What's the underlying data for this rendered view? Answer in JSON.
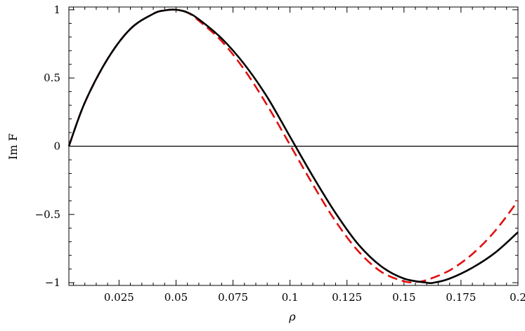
{
  "chart_data": {
    "type": "line",
    "xlabel": "ρ",
    "ylabel": "Im F",
    "xlim": [
      0.003,
      0.2
    ],
    "ylim": [
      -1.02,
      1.02
    ],
    "grid": false,
    "x_ticks": [
      {
        "value": 0.025,
        "label": "0.025"
      },
      {
        "value": 0.05,
        "label": "0.05"
      },
      {
        "value": 0.075,
        "label": "0.075"
      },
      {
        "value": 0.1,
        "label": "0.1"
      },
      {
        "value": 0.125,
        "label": "0.125"
      },
      {
        "value": 0.15,
        "label": "0.15"
      },
      {
        "value": 0.175,
        "label": "0.175"
      },
      {
        "value": 0.2,
        "label": "0.2"
      }
    ],
    "y_ticks": [
      {
        "value": 1,
        "label": "1"
      },
      {
        "value": 0.5,
        "label": "0.5"
      },
      {
        "value": 0,
        "label": "0"
      },
      {
        "value": -0.5,
        "label": "−0.5"
      },
      {
        "value": -1,
        "label": "−1"
      }
    ],
    "reference_lines": [
      {
        "axis": "y",
        "value": 0,
        "color": "#000000"
      }
    ],
    "series": [
      {
        "color": "#000000",
        "style": "solid",
        "x": [
          0.003,
          0.01,
          0.02,
          0.03,
          0.04,
          0.045,
          0.05,
          0.055,
          0.06,
          0.07,
          0.08,
          0.09,
          0.1,
          0.11,
          0.12,
          0.13,
          0.14,
          0.15,
          0.16,
          0.163,
          0.17,
          0.18,
          0.19,
          0.2
        ],
        "y": [
          0.0,
          0.32,
          0.64,
          0.86,
          0.97,
          0.995,
          1.0,
          0.98,
          0.93,
          0.79,
          0.6,
          0.36,
          0.07,
          -0.22,
          -0.49,
          -0.72,
          -0.88,
          -0.97,
          -1.0,
          -1.0,
          -0.97,
          -0.89,
          -0.78,
          -0.63
        ]
      },
      {
        "color": "#e01010",
        "style": "dashed",
        "x": [
          0.003,
          0.01,
          0.02,
          0.03,
          0.04,
          0.045,
          0.05,
          0.055,
          0.06,
          0.07,
          0.08,
          0.09,
          0.1,
          0.11,
          0.12,
          0.13,
          0.14,
          0.15,
          0.155,
          0.16,
          0.17,
          0.18,
          0.19,
          0.2
        ],
        "y": [
          0.0,
          0.32,
          0.64,
          0.86,
          0.97,
          0.995,
          1.0,
          0.98,
          0.92,
          0.77,
          0.56,
          0.3,
          0.01,
          -0.28,
          -0.55,
          -0.77,
          -0.92,
          -0.99,
          -0.995,
          -0.98,
          -0.91,
          -0.79,
          -0.62,
          -0.4
        ]
      }
    ]
  }
}
